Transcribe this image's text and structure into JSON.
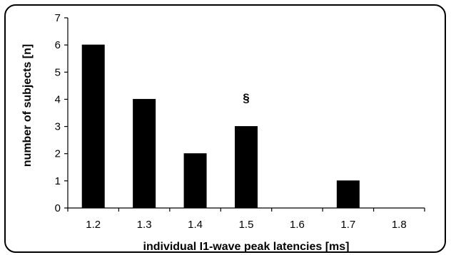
{
  "chart_data": {
    "type": "bar",
    "categories": [
      "1.2",
      "1.3",
      "1.4",
      "1.5",
      "1.6",
      "1.7",
      "1.8"
    ],
    "values": [
      6,
      4,
      2,
      3,
      0,
      1,
      0
    ],
    "xlabel": "individual I1-wave peak latencies [ms]",
    "ylabel": "number of subjects [n]",
    "ylim": [
      0,
      7
    ],
    "yticks": [
      "0",
      "1",
      "2",
      "3",
      "4",
      "5",
      "6",
      "7"
    ],
    "grid": false,
    "legend": "none",
    "bar_color": "#000000",
    "annotations": [
      {
        "text": "§",
        "category": "1.5",
        "value": 3.9
      }
    ]
  }
}
